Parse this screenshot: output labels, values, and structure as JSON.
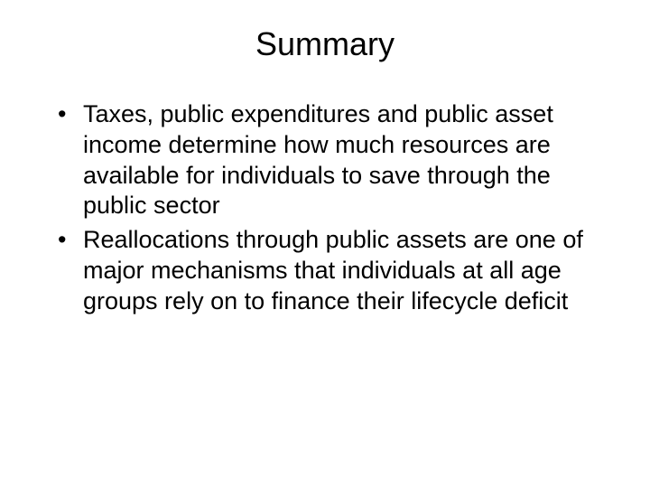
{
  "slide": {
    "title": "Summary",
    "bullets": [
      "Taxes, public expenditures and public asset income determine how much resources are available for individuals to save through the public sector",
      "Reallocations through public assets are one of major mechanisms that individuals at all age groups rely on to finance their lifecycle deficit"
    ],
    "title_fontsize": 36,
    "body_fontsize": 27,
    "text_color": "#000000",
    "background_color": "#ffffff"
  }
}
